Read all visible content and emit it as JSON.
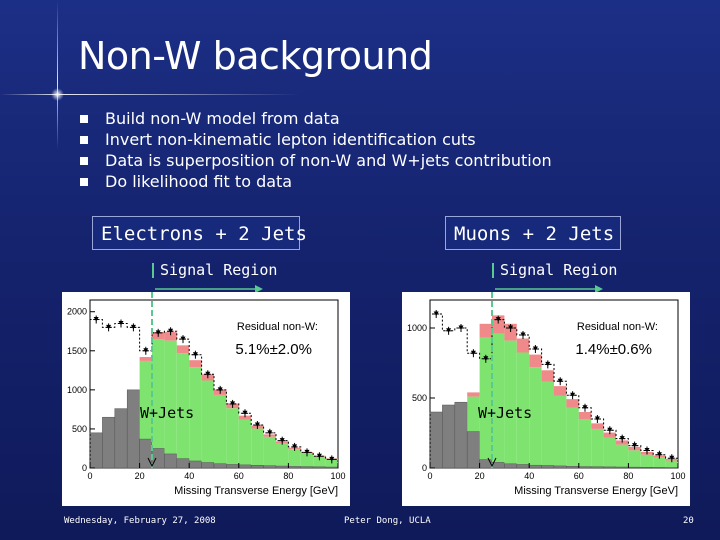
{
  "slide": {
    "title": "Non-W background",
    "bullets": [
      "Build non-W model from data",
      "Invert non-kinematic lepton identification cuts",
      "Data is superposition of non-W and W+jets contribution",
      "Do likelihood fit to data"
    ],
    "footer": {
      "date": "Wednesday, February 27, 2008",
      "author": "Peter Dong, UCLA",
      "page": "20"
    }
  },
  "panels": {
    "electrons": {
      "header": "Electrons + 2 Jets",
      "signal_region": "Signal Region",
      "residual_label": "Residual non-W:",
      "residual_value": "5.1%±2.0%",
      "wjets_label": "W+Jets"
    },
    "muons": {
      "header": "Muons + 2 Jets",
      "signal_region": "Signal Region",
      "residual_label": "Residual non-W:",
      "residual_value": "1.4%±0.6%",
      "wjets_label": "W+Jets"
    }
  },
  "colors": {
    "background": "#16257a",
    "nonw_gray": "#7f7f7f",
    "wjets_green": "#7fe46f",
    "other_red": "#f08a8a",
    "other_orange": "#f5b060",
    "cut_line": "#58c98f"
  },
  "chart_data": [
    {
      "type": "bar",
      "xlabel": "Missing Transverse Energy [GeV]",
      "x_ticks": [
        0,
        20,
        40,
        60,
        80,
        100
      ],
      "y_ticks": [
        0,
        500,
        1000,
        1500,
        2000
      ],
      "xlim": [
        0,
        100
      ],
      "ylim": [
        0,
        2150
      ],
      "bin_width": 5,
      "x": [
        2.5,
        7.5,
        12.5,
        17.5,
        22.5,
        27.5,
        32.5,
        37.5,
        42.5,
        47.5,
        52.5,
        57.5,
        62.5,
        67.5,
        72.5,
        77.5,
        82.5,
        87.5,
        92.5,
        97.5
      ],
      "cut_x": 25,
      "series": [
        {
          "name": "non-W",
          "values": [
            450,
            650,
            760,
            1000,
            370,
            250,
            180,
            120,
            90,
            70,
            55,
            45,
            40,
            35,
            30,
            25,
            20,
            18,
            15,
            12
          ]
        },
        {
          "name": "W+Jets",
          "values": [
            0,
            0,
            0,
            0,
            1000,
            1400,
            1450,
            1350,
            1200,
            1050,
            880,
            720,
            580,
            470,
            370,
            290,
            220,
            170,
            130,
            100
          ]
        },
        {
          "name": "other",
          "values": [
            0,
            0,
            0,
            0,
            50,
            90,
            110,
            100,
            90,
            80,
            70,
            60,
            50,
            40,
            30,
            25,
            20,
            15,
            12,
            10
          ]
        },
        {
          "name": "data",
          "values": [
            1900,
            1800,
            1850,
            1800,
            1500,
            1730,
            1750,
            1650,
            1450,
            1200,
            1000,
            820,
            700,
            550,
            450,
            350,
            270,
            200,
            150,
            110
          ]
        }
      ]
    },
    {
      "type": "bar",
      "xlabel": "Missing Transverse Energy [GeV]",
      "x_ticks": [
        0,
        20,
        40,
        60,
        80,
        100
      ],
      "y_ticks": [
        0,
        500,
        1000
      ],
      "xlim": [
        0,
        100
      ],
      "ylim": [
        0,
        1200
      ],
      "bin_width": 5,
      "x": [
        2.5,
        7.5,
        12.5,
        17.5,
        22.5,
        27.5,
        32.5,
        37.5,
        42.5,
        47.5,
        52.5,
        57.5,
        62.5,
        67.5,
        72.5,
        77.5,
        82.5,
        87.5,
        92.5,
        97.5
      ],
      "cut_x": 25,
      "series": [
        {
          "name": "non-W",
          "values": [
            400,
            450,
            470,
            260,
            60,
            40,
            30,
            25,
            20,
            18,
            15,
            12,
            10,
            9,
            8,
            7,
            6,
            5,
            4,
            3
          ]
        },
        {
          "name": "W+Jets",
          "values": [
            0,
            0,
            0,
            250,
            870,
            920,
            880,
            800,
            700,
            600,
            500,
            420,
            340,
            270,
            210,
            160,
            120,
            90,
            70,
            50
          ]
        },
        {
          "name": "other",
          "values": [
            0,
            0,
            0,
            30,
            100,
            130,
            120,
            100,
            90,
            80,
            70,
            60,
            50,
            40,
            35,
            30,
            25,
            20,
            15,
            12
          ]
        },
        {
          "name": "data",
          "values": [
            1100,
            980,
            1000,
            820,
            780,
            1060,
            1000,
            950,
            850,
            740,
            620,
            520,
            430,
            350,
            270,
            210,
            160,
            125,
            95,
            70
          ]
        }
      ]
    }
  ]
}
